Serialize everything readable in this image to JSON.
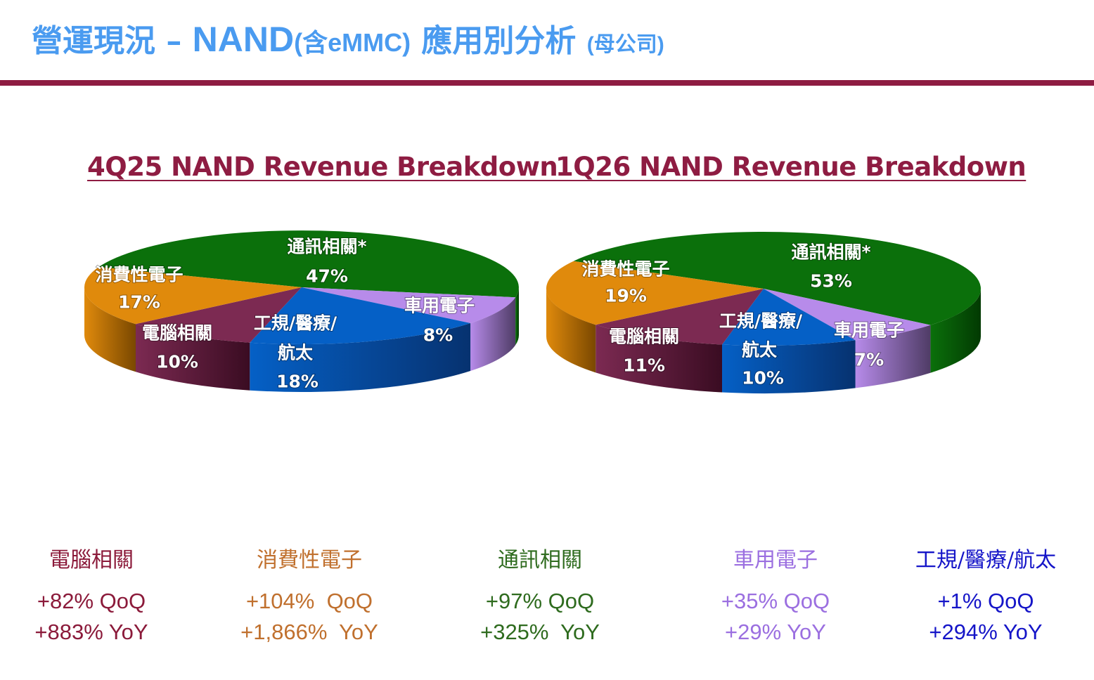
{
  "header": {
    "title_part1": "營運現況 – ",
    "title_part2": "NAND",
    "title_part3": "(含eMMC)",
    "title_part4": " 應用別分析 ",
    "title_part5": "(母公司)"
  },
  "colors": {
    "title": "#4A9BF0",
    "rule": "#8E1C42",
    "communications": "#2E6B1E",
    "automotive": "#9B6FE0",
    "industrial": "#1515C8",
    "computing": "#8B1A3A",
    "consumer": "#C0702E"
  },
  "chart_data": [
    {
      "type": "pie",
      "style": "3d",
      "title": "4Q25 NAND Revenue Breakdown",
      "slices": [
        {
          "key": "communications",
          "label_lines": [
            "通訊相關*"
          ],
          "value": 47,
          "value_label": "47%",
          "top": "#0B700B",
          "side": "#023A02"
        },
        {
          "key": "automotive",
          "label_lines": [
            "車用電子"
          ],
          "value": 8,
          "value_label": "8%",
          "top": "#B78BEA",
          "side": "#4F3C66"
        },
        {
          "key": "industrial",
          "label_lines": [
            "工規/醫療/",
            "航太"
          ],
          "value": 18,
          "value_label": "18%",
          "top": "#0560C6",
          "side": "#063270"
        },
        {
          "key": "computing",
          "label_lines": [
            "電腦相關"
          ],
          "value": 10,
          "value_label": "10%",
          "top": "#7C2A52",
          "side": "#3A0C22"
        },
        {
          "key": "consumer",
          "label_lines": [
            "消費性電子"
          ],
          "value": 17,
          "value_label": "17%",
          "top": "#E08A0C",
          "side": "#7A4800"
        }
      ]
    },
    {
      "type": "pie",
      "style": "3d",
      "title": "1Q26 NAND Revenue Breakdown",
      "slices": [
        {
          "key": "communications",
          "label_lines": [
            "通訊相關*"
          ],
          "value": 53,
          "value_label": "53%",
          "top": "#0B700B",
          "side": "#023A02"
        },
        {
          "key": "automotive",
          "label_lines": [
            "車用電子"
          ],
          "value": 7,
          "value_label": "7%",
          "top": "#B78BEA",
          "side": "#4F3C66"
        },
        {
          "key": "industrial",
          "label_lines": [
            "工規/醫療/",
            "航太"
          ],
          "value": 10,
          "value_label": "10%",
          "top": "#0560C6",
          "side": "#063270"
        },
        {
          "key": "computing",
          "label_lines": [
            "電腦相關"
          ],
          "value": 11,
          "value_label": "11%",
          "top": "#7C2A52",
          "side": "#3A0C22"
        },
        {
          "key": "consumer",
          "label_lines": [
            "消費性電子"
          ],
          "value": 19,
          "value_label": "19%",
          "top": "#E08A0C",
          "side": "#7A4800"
        }
      ]
    }
  ],
  "growth": [
    {
      "name": "電腦相關",
      "qoq": "+82% QoQ",
      "yoy": "+883% YoY",
      "color": "#8B1A3A"
    },
    {
      "name": "消費性電子",
      "qoq": "+104%  QoQ",
      "yoy": "+1,866%  YoY",
      "color": "#C0702E"
    },
    {
      "name": "通訊相關",
      "qoq": "+97% QoQ",
      "yoy": "+325%  YoY",
      "color": "#2E6B1E"
    },
    {
      "name": "車用電子",
      "qoq": "+35% QoQ",
      "yoy": "+29% YoY",
      "color": "#9B6FE0"
    },
    {
      "name": "工規/醫療/航太",
      "qoq": "+1% QoQ",
      "yoy": "+294% YoY",
      "color": "#1515C8"
    }
  ]
}
